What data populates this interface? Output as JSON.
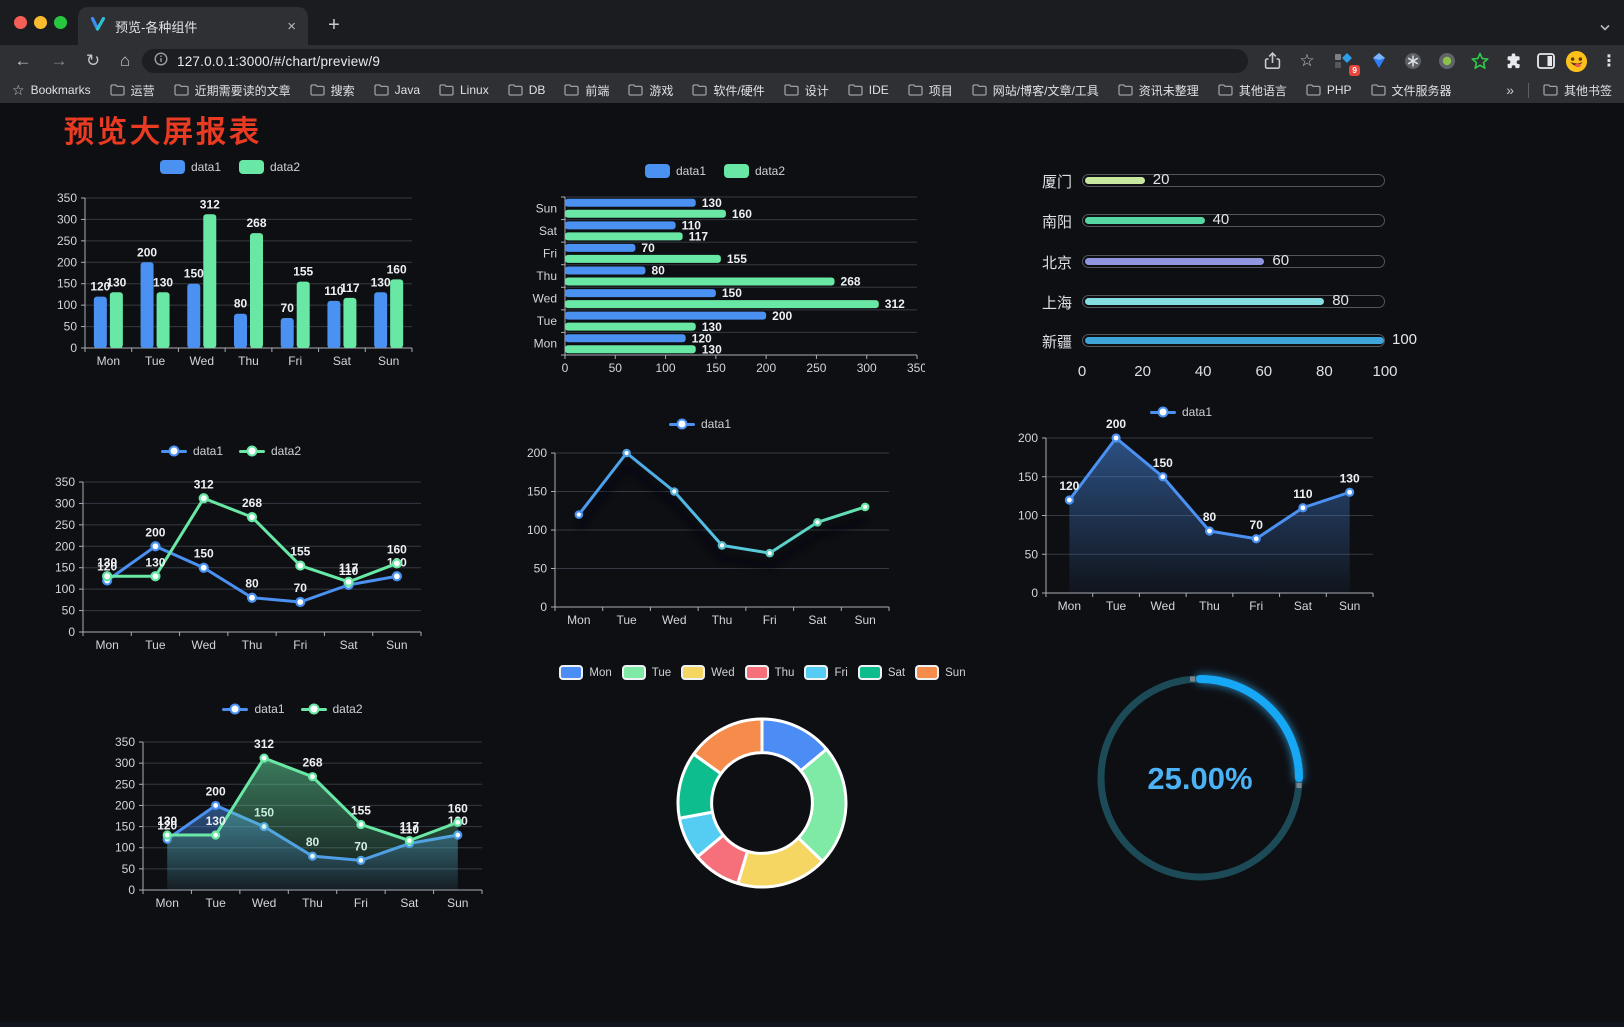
{
  "browser": {
    "tab": {
      "title": "预览-各种组件",
      "close": "×",
      "new_tab": "+"
    },
    "url": "127.0.0.1:3000/#/chart/preview/9",
    "extensions_badge": "9",
    "bookmarks": {
      "star_label": "Bookmarks",
      "folders": [
        "运营",
        "近期需要读的文章",
        "搜索",
        "Java",
        "Linux",
        "DB",
        "前端",
        "游戏",
        "软件/硬件",
        "设计",
        "IDE",
        "项目",
        "网站/博客/文章/工具",
        "资讯未整理",
        "其他语言",
        "PHP",
        "文件服务器"
      ],
      "overflow": "»",
      "other": "其他书签"
    }
  },
  "page": {
    "title": "预览大屏报表",
    "title_color": "#e93a22"
  },
  "chart_data": [
    {
      "id": "c1",
      "type": "bar",
      "title": "",
      "categories": [
        "Mon",
        "Tue",
        "Wed",
        "Thu",
        "Fri",
        "Sat",
        "Sun"
      ],
      "series": [
        {
          "name": "data1",
          "color": "#4a91f2",
          "values": [
            120,
            200,
            150,
            80,
            70,
            110,
            130
          ]
        },
        {
          "name": "data2",
          "color": "#69e8a5",
          "values": [
            130,
            130,
            312,
            268,
            155,
            117,
            160
          ]
        }
      ],
      "ylim": [
        0,
        350
      ],
      "ystep": 50,
      "legend_position": "top",
      "grid": true,
      "value_labels": true
    },
    {
      "id": "c2",
      "type": "bar-horizontal",
      "categories": [
        "Mon",
        "Tue",
        "Wed",
        "Thu",
        "Fri",
        "Sat",
        "Sun"
      ],
      "series": [
        {
          "name": "data1",
          "color": "#4a91f2",
          "values": [
            120,
            200,
            150,
            80,
            70,
            110,
            130
          ]
        },
        {
          "name": "data2",
          "color": "#69e8a5",
          "values": [
            130,
            130,
            312,
            268,
            155,
            117,
            160
          ]
        }
      ],
      "xlim": [
        0,
        350
      ],
      "xstep": 50,
      "legend_position": "top",
      "grid": true,
      "value_labels": true
    },
    {
      "id": "c3",
      "type": "progress-bars",
      "max": 100,
      "xticks": [
        0,
        20,
        40,
        60,
        80,
        100
      ],
      "items": [
        {
          "label": "厦门",
          "value": 20,
          "color": "#c8e8a0"
        },
        {
          "label": "南阳",
          "value": 40,
          "color": "#55d6a3"
        },
        {
          "label": "北京",
          "value": 60,
          "color": "#9196e1"
        },
        {
          "label": "上海",
          "value": 80,
          "color": "#84dde1"
        },
        {
          "label": "新疆",
          "value": 100,
          "color": "#3ea4da"
        }
      ]
    },
    {
      "id": "c4",
      "type": "line",
      "categories": [
        "Mon",
        "Tue",
        "Wed",
        "Thu",
        "Fri",
        "Sat",
        "Sun"
      ],
      "series": [
        {
          "name": "data1",
          "color": "#4a91f2",
          "values": [
            120,
            200,
            150,
            80,
            70,
            110,
            130
          ]
        },
        {
          "name": "data2",
          "color": "#69e8a5",
          "values": [
            130,
            130,
            312,
            268,
            155,
            117,
            160
          ]
        }
      ],
      "ylim": [
        0,
        350
      ],
      "ystep": 50,
      "legend_position": "top",
      "value_labels": true
    },
    {
      "id": "c5",
      "type": "line",
      "categories": [
        "Mon",
        "Tue",
        "Wed",
        "Thu",
        "Fri",
        "Sat",
        "Sun"
      ],
      "series": [
        {
          "name": "data1",
          "color": "#4a91f2",
          "gradient": [
            "#4a91f2",
            "#53c4e2",
            "#69e8a5"
          ],
          "values": [
            120,
            200,
            150,
            80,
            70,
            110,
            130
          ]
        }
      ],
      "ylim": [
        0,
        200
      ],
      "ystep": 50,
      "legend_position": "top",
      "value_labels": false,
      "shadow": true
    },
    {
      "id": "c6",
      "type": "area",
      "categories": [
        "Mon",
        "Tue",
        "Wed",
        "Thu",
        "Fri",
        "Sat",
        "Sun"
      ],
      "series": [
        {
          "name": "data1",
          "color": "#4a91f2",
          "values": [
            120,
            200,
            150,
            80,
            70,
            110,
            130
          ]
        }
      ],
      "ylim": [
        0,
        200
      ],
      "ystep": 50,
      "legend_position": "top",
      "value_labels": true
    },
    {
      "id": "c7",
      "type": "area",
      "categories": [
        "Mon",
        "Tue",
        "Wed",
        "Thu",
        "Fri",
        "Sat",
        "Sun"
      ],
      "series": [
        {
          "name": "data1",
          "color": "#4a91f2",
          "values": [
            120,
            200,
            150,
            80,
            70,
            110,
            130
          ]
        },
        {
          "name": "data2",
          "color": "#69e8a5",
          "values": [
            130,
            130,
            312,
            268,
            155,
            117,
            160
          ]
        }
      ],
      "ylim": [
        0,
        350
      ],
      "ystep": 50,
      "legend_position": "top",
      "value_labels": true
    },
    {
      "id": "c8",
      "type": "pie",
      "categories": [
        "Mon",
        "Tue",
        "Wed",
        "Thu",
        "Fri",
        "Sat",
        "Sun"
      ],
      "values": [
        120,
        200,
        150,
        80,
        70,
        110,
        130
      ],
      "colors": [
        "#4b8df5",
        "#7fe9a6",
        "#f5d663",
        "#f6707b",
        "#55cdf2",
        "#0dbd8d",
        "#f68c4b"
      ],
      "inner_radius_ratio": 0.6,
      "legend_position": "top"
    },
    {
      "id": "c9",
      "type": "gauge",
      "value": 25,
      "label": "25.00%",
      "track_color": "#1c4a57",
      "arc_color": "#18a8f5",
      "text_color": "#4bb2f5"
    }
  ]
}
